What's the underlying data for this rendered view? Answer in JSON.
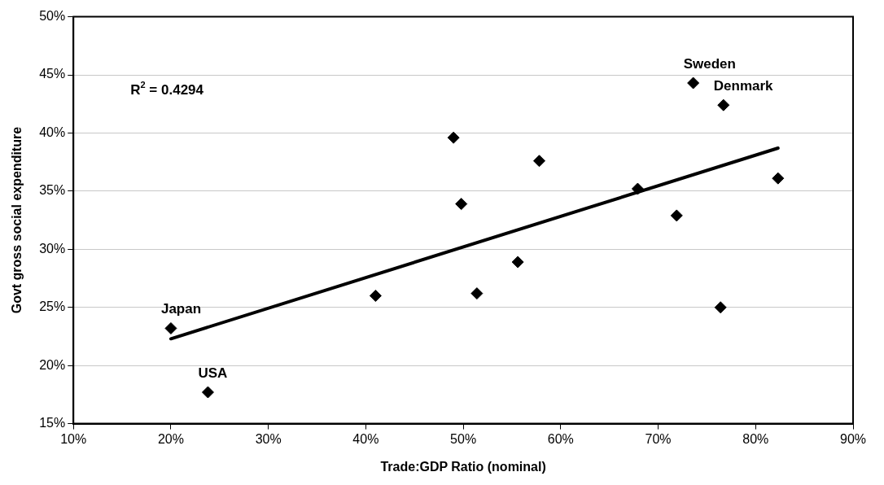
{
  "chart_data": {
    "type": "scatter",
    "xlabel": "Trade:GDP Ratio (nominal)",
    "ylabel": "Govt gross social expenditure",
    "x": [
      20.0,
      23.8,
      41.0,
      49.0,
      49.8,
      51.4,
      55.6,
      57.8,
      67.9,
      71.9,
      73.6,
      76.4,
      76.7,
      82.3
    ],
    "series": [
      {
        "color": "#000000",
        "marker": "diamond",
        "values": [
          23.2,
          17.7,
          26.0,
          39.6,
          33.9,
          26.2,
          28.9,
          37.6,
          35.2,
          32.9,
          44.3,
          25.0,
          42.4,
          36.1
        ]
      },
      {
        "type": "line",
        "color": "#000000",
        "marker": "none",
        "x": [
          20.0,
          82.3
        ],
        "values": [
          22.3,
          38.7
        ]
      }
    ],
    "legend": false,
    "grid": "y",
    "xlim": [
      10,
      90
    ],
    "xticks": [
      {
        "value": 10,
        "label": "10%"
      },
      {
        "value": 20,
        "label": "20%"
      },
      {
        "value": 30,
        "label": "30%"
      },
      {
        "value": 40,
        "label": "40%"
      },
      {
        "value": 50,
        "label": "50%"
      },
      {
        "value": 60,
        "label": "60%"
      },
      {
        "value": 70,
        "label": "70%"
      },
      {
        "value": 80,
        "label": "80%"
      },
      {
        "value": 90,
        "label": "90%"
      }
    ],
    "ylim": [
      15,
      50
    ],
    "yticks": [
      {
        "value": 15,
        "label": "15%"
      },
      {
        "value": 20,
        "label": "20%"
      },
      {
        "value": 25,
        "label": "25%"
      },
      {
        "value": 30,
        "label": "30%"
      },
      {
        "value": 35,
        "label": "35%"
      },
      {
        "value": 40,
        "label": "40%"
      },
      {
        "value": 45,
        "label": "45%"
      },
      {
        "value": 50,
        "label": "50%"
      }
    ],
    "annotations": [
      "R$^{2}$ = 0.4294",
      {
        "text": "Japan",
        "x": 20.0,
        "y": 23.2
      },
      {
        "text": "USA",
        "x": 23.8,
        "y": 17.7
      },
      {
        "text": "Sweden",
        "x": 73.6,
        "y": 44.3
      },
      {
        "text": "Denmark",
        "x": 76.7,
        "y": 42.4
      }
    ]
  }
}
